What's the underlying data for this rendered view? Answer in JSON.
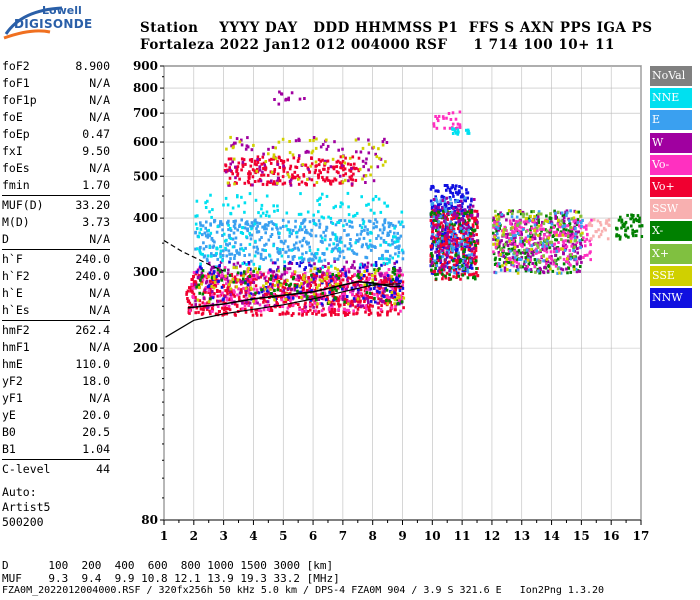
{
  "logo": {
    "line1": "Lowell",
    "line2": "DIGISONDE"
  },
  "header": {
    "line1": "Station    YYYY DAY   DDD HHMMSS P1  FFS S AXN PPS IGA PS",
    "line2": "Fortaleza 2022 Jan12 012 004000 RSF     1 714 100 10+ 11"
  },
  "params": [
    {
      "group": [
        {
          "label": "foF2",
          "value": "8.900"
        },
        {
          "label": "foF1",
          "value": "N/A"
        },
        {
          "label": "foF1p",
          "value": "N/A"
        },
        {
          "label": "foE",
          "value": "N/A"
        },
        {
          "label": "foEp",
          "value": "0.47"
        },
        {
          "label": "fxI",
          "value": "9.50"
        },
        {
          "label": "foEs",
          "value": "N/A"
        },
        {
          "label": "fmin",
          "value": "1.70"
        }
      ]
    },
    {
      "group": [
        {
          "label": "MUF(D)",
          "value": "33.20"
        },
        {
          "label": "M(D)",
          "value": "3.73"
        },
        {
          "label": "D",
          "value": "N/A"
        }
      ]
    },
    {
      "group": [
        {
          "label": "h`F",
          "value": "240.0"
        },
        {
          "label": "h`F2",
          "value": "240.0"
        },
        {
          "label": "h`E",
          "value": "N/A"
        },
        {
          "label": "h`Es",
          "value": "N/A"
        }
      ]
    },
    {
      "group": [
        {
          "label": "hmF2",
          "value": "262.4"
        },
        {
          "label": "hmF1",
          "value": "N/A"
        },
        {
          "label": "hmE",
          "value": "110.0"
        },
        {
          "label": "yF2",
          "value": "18.0"
        },
        {
          "label": "yF1",
          "value": "N/A"
        },
        {
          "label": "yE",
          "value": "20.0"
        },
        {
          "label": "B0",
          "value": "20.5"
        },
        {
          "label": "B1",
          "value": "1.04"
        }
      ]
    },
    {
      "group": [
        {
          "label": "C-level",
          "value": "44"
        }
      ]
    }
  ],
  "auto": {
    "line1": "Auto:",
    "line2": "Artist5",
    "line3": "500200"
  },
  "bottom": {
    "d_row": "D      100  200  400  600  800 1000 1500 3000 [km]",
    "muf_row": "MUF    9.3  9.4  9.9 10.8 12.1 13.9 19.3 33.2 [MHz]",
    "file_row": "FZA0M_2022012004000.RSF / 320fx256h 50 kHz 5.0 km / DPS-4 FZA0M 904 / 3.9 S 321.6 E   Ion2Png 1.3.20"
  },
  "legend": [
    {
      "label": "NoVal",
      "color": "#808080"
    },
    {
      "label": "NNE",
      "color": "#00e0f0"
    },
    {
      "label": "E",
      "color": "#3aa0f0"
    },
    {
      "label": "W",
      "color": "#a000a0"
    },
    {
      "label": "Vo-",
      "color": "#ff30c0"
    },
    {
      "label": "Vo+",
      "color": "#f00030"
    },
    {
      "label": "SSW",
      "color": "#f8b0b0"
    },
    {
      "label": "X-",
      "color": "#008000"
    },
    {
      "label": "X+",
      "color": "#80c040"
    },
    {
      "label": "SSE",
      "color": "#d0d000"
    },
    {
      "label": "NNW",
      "color": "#1010e0"
    }
  ],
  "chart_data": {
    "type": "scatter",
    "xlim": [
      1,
      17
    ],
    "ylim": [
      80,
      900
    ],
    "x_ticks": [
      "1",
      "2",
      "3",
      "4",
      "5",
      "6",
      "7",
      "8",
      "9",
      "10",
      "11",
      "12",
      "13",
      "14",
      "15",
      "16",
      "17"
    ],
    "y_ticks": [
      "80",
      "200",
      "300",
      "400",
      "500",
      "600",
      "700",
      "800",
      "900"
    ],
    "y_scale": "log",
    "grid": true,
    "clusters": [
      {
        "name": "F-trace",
        "color": "#f00030",
        "x": [
          1.7,
          9.0
        ],
        "y": [
          240,
          300
        ],
        "n": 700
      },
      {
        "name": "F-trace",
        "color": "#ff30c0",
        "x": [
          1.8,
          9.0
        ],
        "y": [
          245,
          310
        ],
        "n": 260
      },
      {
        "name": "F-trace",
        "color": "#a000a0",
        "x": [
          2.0,
          9.0
        ],
        "y": [
          250,
          320
        ],
        "n": 200
      },
      {
        "name": "F-trace",
        "color": "#1010e0",
        "x": [
          2.0,
          9.0
        ],
        "y": [
          255,
          320
        ],
        "n": 120
      },
      {
        "name": "F-trace",
        "color": "#008000",
        "x": [
          2.0,
          9.0
        ],
        "y": [
          255,
          310
        ],
        "n": 90
      },
      {
        "name": "F-trace",
        "color": "#d0d000",
        "x": [
          2.0,
          9.0
        ],
        "y": [
          255,
          310
        ],
        "n": 90
      },
      {
        "name": "F-trace",
        "color": "#3aa0f0",
        "x": [
          2.0,
          9.0
        ],
        "y": [
          320,
          400
        ],
        "n": 420
      },
      {
        "name": "F-trace",
        "color": "#00e0f0",
        "x": [
          2.0,
          9.0
        ],
        "y": [
          310,
          460
        ],
        "n": 200
      },
      {
        "name": "2F",
        "color": "#f00030",
        "x": [
          3.0,
          7.5
        ],
        "y": [
          480,
          560
        ],
        "n": 230
      },
      {
        "name": "2F",
        "color": "#a000a0",
        "x": [
          3.0,
          8.5
        ],
        "y": [
          480,
          620
        ],
        "n": 90
      },
      {
        "name": "2F",
        "color": "#d0d000",
        "x": [
          3.0,
          8.5
        ],
        "y": [
          480,
          620
        ],
        "n": 60
      },
      {
        "name": "spread",
        "color": "#1010e0",
        "x": [
          9.9,
          11.3
        ],
        "y": [
          300,
          480
        ],
        "n": 260
      },
      {
        "name": "spread",
        "color": "#f00030",
        "x": [
          9.9,
          11.5
        ],
        "y": [
          290,
          420
        ],
        "n": 260
      },
      {
        "name": "spread",
        "color": "#008000",
        "x": [
          9.9,
          11.5
        ],
        "y": [
          290,
          420
        ],
        "n": 120
      },
      {
        "name": "spread",
        "color": "#3aa0f0",
        "x": [
          9.9,
          11.3
        ],
        "y": [
          300,
          450
        ],
        "n": 80
      },
      {
        "name": "spread",
        "color": "#a000a0",
        "x": [
          9.9,
          11.5
        ],
        "y": [
          300,
          450
        ],
        "n": 90
      },
      {
        "name": "spread2",
        "color": "#008000",
        "x": [
          12.0,
          15.0
        ],
        "y": [
          300,
          420
        ],
        "n": 200
      },
      {
        "name": "spread2",
        "color": "#a000a0",
        "x": [
          12.0,
          15.0
        ],
        "y": [
          300,
          420
        ],
        "n": 180
      },
      {
        "name": "spread2",
        "color": "#ff30c0",
        "x": [
          12.0,
          15.3
        ],
        "y": [
          310,
          400
        ],
        "n": 200
      },
      {
        "name": "spread2",
        "color": "#3aa0f0",
        "x": [
          12.0,
          15.0
        ],
        "y": [
          300,
          420
        ],
        "n": 80
      },
      {
        "name": "spread2",
        "color": "#d0d000",
        "x": [
          12.0,
          15.0
        ],
        "y": [
          300,
          420
        ],
        "n": 60
      },
      {
        "name": "spread2",
        "color": "#80c040",
        "x": [
          12.0,
          15.0
        ],
        "y": [
          300,
          420
        ],
        "n": 60
      },
      {
        "name": "tail",
        "color": "#008000",
        "x": [
          16.1,
          17.0
        ],
        "y": [
          360,
          410
        ],
        "n": 50
      },
      {
        "name": "tail",
        "color": "#f8b0b0",
        "x": [
          15.2,
          15.9
        ],
        "y": [
          360,
          400
        ],
        "n": 25
      },
      {
        "name": "upper",
        "color": "#ff30c0",
        "x": [
          10.0,
          10.9
        ],
        "y": [
          650,
          710
        ],
        "n": 25
      },
      {
        "name": "upper",
        "color": "#00e0f0",
        "x": [
          10.6,
          11.3
        ],
        "y": [
          630,
          650
        ],
        "n": 15
      },
      {
        "name": "upper",
        "color": "#a000a0",
        "x": [
          4.5,
          5.8
        ],
        "y": [
          740,
          790
        ],
        "n": 12
      }
    ],
    "profile_solid": {
      "x": [
        1.05,
        2,
        3,
        4,
        5,
        6,
        7,
        8,
        8.95
      ],
      "y": [
        212,
        232,
        240,
        246,
        252,
        260,
        270,
        280,
        282
      ]
    },
    "profile_dashed": {
      "x": [
        1.0,
        1.6,
        2.2,
        2.6,
        3.0
      ],
      "y": [
        355,
        335,
        320,
        310,
        302
      ]
    },
    "trace_line": {
      "x": [
        1.8,
        3,
        4,
        5,
        6,
        7,
        7.5,
        8,
        8.6,
        9.0
      ],
      "y": [
        248,
        253,
        260,
        265,
        270,
        280,
        285,
        283,
        278,
        278
      ]
    }
  }
}
